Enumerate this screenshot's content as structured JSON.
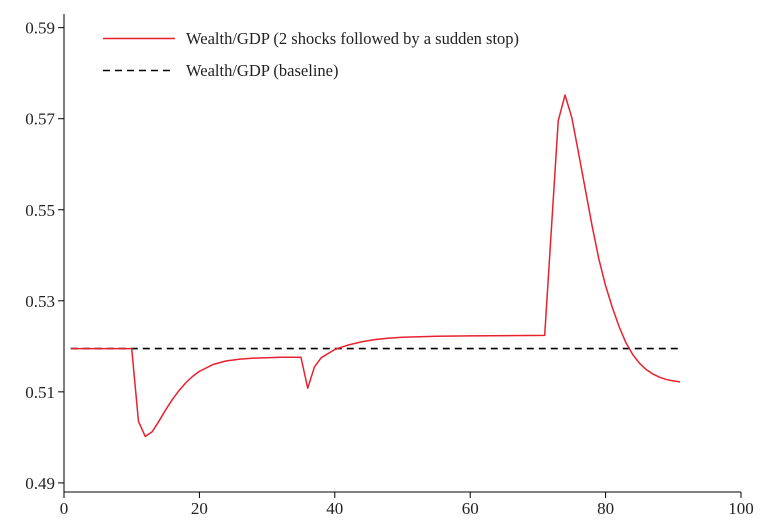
{
  "chart_data": {
    "type": "line",
    "title": "",
    "xlabel": "",
    "ylabel": "",
    "xlim": [
      0,
      100
    ],
    "ylim": [
      0.488,
      0.593
    ],
    "xticks": [
      0,
      20,
      40,
      60,
      80,
      100
    ],
    "yticks": [
      0.49,
      0.51,
      0.53,
      0.55,
      0.57,
      0.59
    ],
    "ytick_labels": [
      "0.49",
      "0.51",
      "0.53",
      "0.55",
      "0.57",
      "0.59"
    ],
    "grid": false,
    "legend_position": "top-left",
    "series": [
      {
        "name": "Wealth/GDP (2 shocks followed by a sudden stop)",
        "color": "#e8212e",
        "style": "solid",
        "points": [
          [
            1,
            0.5195
          ],
          [
            10,
            0.5195
          ],
          [
            11,
            0.5035
          ],
          [
            12,
            0.5002
          ],
          [
            13,
            0.5012
          ],
          [
            14,
            0.5035
          ],
          [
            15,
            0.506
          ],
          [
            16,
            0.5083
          ],
          [
            17,
            0.5103
          ],
          [
            18,
            0.512
          ],
          [
            19,
            0.5134
          ],
          [
            20,
            0.5145
          ],
          [
            22,
            0.516
          ],
          [
            24,
            0.5168
          ],
          [
            26,
            0.5172
          ],
          [
            28,
            0.5174
          ],
          [
            30,
            0.5175
          ],
          [
            32,
            0.5176
          ],
          [
            35,
            0.5176
          ],
          [
            36,
            0.5108
          ],
          [
            37,
            0.5155
          ],
          [
            38,
            0.5175
          ],
          [
            40,
            0.5193
          ],
          [
            42,
            0.5203
          ],
          [
            44,
            0.521
          ],
          [
            46,
            0.5215
          ],
          [
            48,
            0.5218
          ],
          [
            50,
            0.522
          ],
          [
            55,
            0.5222
          ],
          [
            60,
            0.5223
          ],
          [
            71,
            0.5224
          ],
          [
            73,
            0.5695
          ],
          [
            74,
            0.5752
          ],
          [
            75,
            0.5703
          ],
          [
            76,
            0.5625
          ],
          [
            77,
            0.5545
          ],
          [
            78,
            0.5465
          ],
          [
            79,
            0.5392
          ],
          [
            80,
            0.5333
          ],
          [
            81,
            0.5285
          ],
          [
            82,
            0.5243
          ],
          [
            83,
            0.5208
          ],
          [
            84,
            0.5182
          ],
          [
            85,
            0.5163
          ],
          [
            86,
            0.5149
          ],
          [
            87,
            0.5139
          ],
          [
            88,
            0.5132
          ],
          [
            89,
            0.5127
          ],
          [
            90,
            0.5124
          ],
          [
            91,
            0.5122
          ]
        ]
      },
      {
        "name": "Wealth/GDP (baseline)",
        "color": "#000000",
        "style": "dashed",
        "points": [
          [
            1,
            0.5195
          ],
          [
            91,
            0.5195
          ]
        ]
      }
    ]
  }
}
